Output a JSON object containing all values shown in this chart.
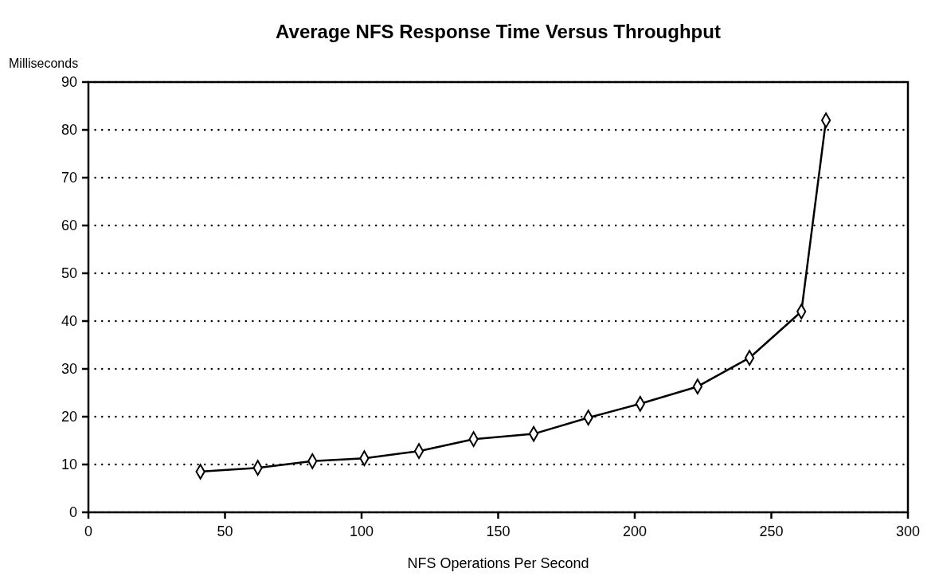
{
  "chart_data": {
    "type": "line",
    "title": "Average NFS Response Time Versus Throughput",
    "xlabel": "NFS Operations Per Second",
    "ylabel": "Milliseconds",
    "x": [
      41,
      62,
      82,
      101,
      121,
      141,
      163,
      183,
      202,
      223,
      242,
      261,
      270
    ],
    "series": [
      {
        "color": "#000000",
        "values": [
          8.5,
          9.3,
          10.7,
          11.3,
          12.8,
          15.3,
          16.4,
          19.8,
          22.7,
          26.3,
          32.3,
          42,
          82
        ]
      }
    ],
    "xlim": [
      0,
      300
    ],
    "xticks": [
      0,
      50,
      100,
      150,
      200,
      250,
      300
    ],
    "ylim": [
      0,
      90
    ],
    "yticks": [
      0,
      10,
      20,
      30,
      40,
      50,
      60,
      70,
      80,
      90
    ],
    "grid": "y",
    "marker": "diamond",
    "line_style": "solid"
  }
}
